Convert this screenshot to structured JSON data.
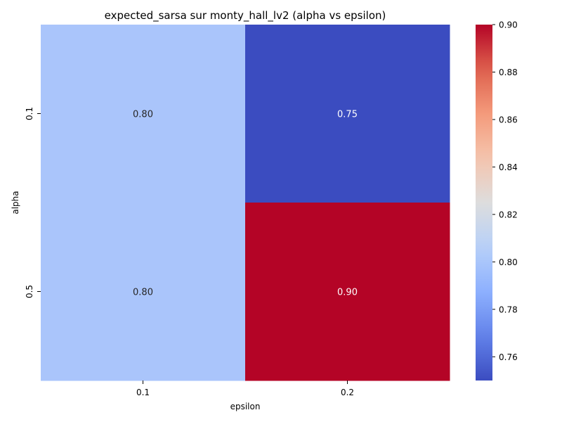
{
  "chart_data": {
    "type": "heatmap",
    "title": "expected_sarsa sur monty_hall_lv2 (alpha vs epsilon)",
    "xlabel": "epsilon",
    "ylabel": "alpha",
    "x_categories": [
      "0.1",
      "0.2"
    ],
    "y_categories": [
      "0.1",
      "0.5"
    ],
    "values": [
      [
        0.8,
        0.75
      ],
      [
        0.8,
        0.9
      ]
    ],
    "cell_labels": [
      [
        "0.80",
        "0.75"
      ],
      [
        "0.80",
        "0.90"
      ]
    ],
    "colorbar": {
      "min": 0.75,
      "max": 0.9,
      "ticks": [
        "0.76",
        "0.78",
        "0.80",
        "0.82",
        "0.84",
        "0.86",
        "0.88",
        "0.90"
      ],
      "colormap": "coolwarm"
    },
    "grid": false,
    "legend": "colorbar-right"
  }
}
